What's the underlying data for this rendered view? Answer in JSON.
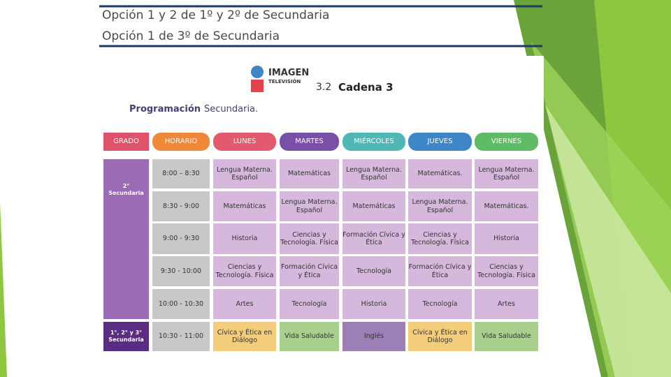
{
  "header": {
    "lines": [
      "Opción 1 y 2 de 1º y 2º de Secundaria",
      "Opción 1 de 3º de Secundaria"
    ]
  },
  "logo": {
    "brand": "IMAGEN",
    "sub": "TELEVISIÓN",
    "channel_number": "3.2",
    "channel_name": "Cadena 3"
  },
  "heading": {
    "title": "Programación",
    "subtitle": "Secundaria."
  },
  "table": {
    "columns": [
      "GRADO",
      "HORARIO",
      "LUNES",
      "MARTES",
      "MIÉRCOLES",
      "JUEVES",
      "VIERNES"
    ],
    "grades": [
      "2°\nSecundaria",
      "1°, 2° y 3°\nSecundaria"
    ],
    "rows": [
      {
        "time": "8:00 – 8:30",
        "subjects": [
          "Lengua Materna.\nEspañol",
          "Matemáticas",
          "Lengua Materna.\nEspañol",
          "Matemáticas.",
          "Lengua Materna.\nEspañol"
        ]
      },
      {
        "time": "8:30 - 9:00",
        "subjects": [
          "Matemáticas",
          "Lengua Materna.\nEspañol",
          "Matemáticas",
          "Lengua Materna.\nEspañol",
          "Matemáticas."
        ]
      },
      {
        "time": "9:00 - 9:30",
        "subjects": [
          "Historia",
          "Ciencias y\nTecnología. Física",
          "Formación Cívica y\nÉtica",
          "Ciencias y\nTecnología. Física",
          "Historia"
        ]
      },
      {
        "time": "9:30 - 10:00",
        "subjects": [
          "Ciencias y\nTecnología. Física",
          "Formación Cívica\ny Ética",
          "Tecnología",
          "Formación Cívica y\nÉtica",
          "Ciencias y\nTecnología. Física"
        ]
      },
      {
        "time": "10:00 - 10:30",
        "subjects": [
          "Artes",
          "Tecnología",
          "Historia",
          "Tecnología",
          "Artes"
        ]
      },
      {
        "time": "10:30 - 11:00",
        "subjects": [
          "Cívica y Ética en\nDiálogo",
          "Vida Saludable",
          "Inglés",
          "Cívica y Ética en\nDiálogo",
          "Vida Saludable"
        ]
      }
    ]
  }
}
